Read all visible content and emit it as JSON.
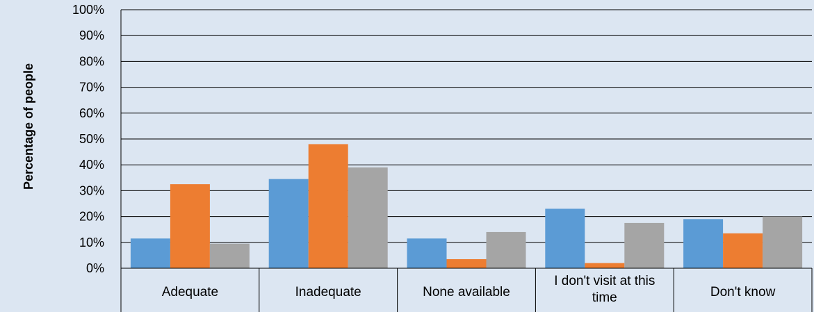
{
  "chart_data": {
    "type": "bar",
    "title": "",
    "xlabel": "",
    "ylabel": "Percentage of people",
    "ylim": [
      0,
      100
    ],
    "yticks": [
      "0%",
      "10%",
      "20%",
      "30%",
      "40%",
      "50%",
      "60%",
      "70%",
      "80%",
      "90%",
      "100%"
    ],
    "grid": true,
    "legend": "none",
    "categories": [
      [
        "Adequate"
      ],
      [
        "Inadequate"
      ],
      [
        "None available"
      ],
      [
        "I don't visit at this",
        "time"
      ],
      [
        "Don't know"
      ]
    ],
    "series": [
      {
        "color": "#5b9bd5",
        "values": [
          11.5,
          34.5,
          11.5,
          23,
          19
        ]
      },
      {
        "color": "#ed7d31",
        "values": [
          32.5,
          48,
          3.5,
          2,
          13.5
        ]
      },
      {
        "color": "#a5a5a5",
        "values": [
          9.5,
          39,
          14,
          17.5,
          20
        ]
      }
    ]
  }
}
